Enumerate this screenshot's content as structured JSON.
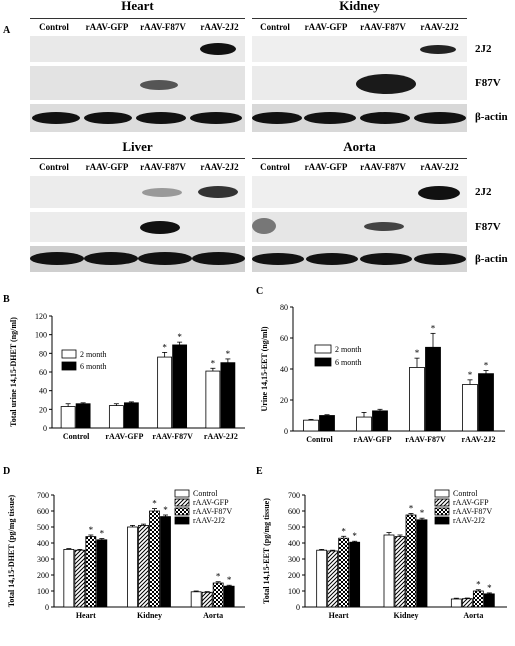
{
  "panel_labels": {
    "A": "A",
    "B": "B",
    "C": "C",
    "D": "D",
    "E": "E"
  },
  "western_blot": {
    "columns": [
      "Control",
      "rAAV-GFP",
      "rAAV-F87V",
      "rAAV-2J2"
    ],
    "band_labels": [
      "2J2",
      "F87V",
      "β-actin"
    ],
    "tissues": {
      "heart": {
        "title": "Heart"
      },
      "kidney": {
        "title": "Kidney"
      },
      "liver": {
        "title": "Liver"
      },
      "aorta": {
        "title": "Aorta"
      }
    }
  },
  "chart_data": [
    {
      "panel": "B",
      "type": "bar",
      "categories": [
        "Control",
        "rAAV-GFP",
        "rAAV-F87V",
        "rAAV-2J2"
      ],
      "series": [
        {
          "name": "2 month",
          "values": [
            23,
            24,
            76,
            61
          ],
          "errors": [
            3,
            2,
            5,
            3
          ],
          "color": "#ffffff"
        },
        {
          "name": "6 month",
          "values": [
            26,
            27,
            89,
            70
          ],
          "errors": [
            1,
            1,
            3,
            4
          ],
          "color": "#000000"
        }
      ],
      "significance": [
        [
          false,
          false,
          true,
          true
        ],
        [
          false,
          false,
          true,
          true
        ]
      ],
      "ylabel": "Total urine 14,15-DHET (ng/ml)",
      "ylim": [
        0,
        120
      ],
      "yticks": [
        0,
        20,
        40,
        60,
        80,
        100,
        120
      ],
      "legend": "upper-left"
    },
    {
      "panel": "C",
      "type": "bar",
      "categories": [
        "Control",
        "rAAV-GFP",
        "rAAV-F87V",
        "rAAV-2J2"
      ],
      "series": [
        {
          "name": "2 month",
          "values": [
            7,
            9,
            41,
            30
          ],
          "errors": [
            0.5,
            3,
            6,
            3
          ],
          "color": "#ffffff"
        },
        {
          "name": "6 month",
          "values": [
            10,
            13,
            54,
            37
          ],
          "errors": [
            0.5,
            1,
            9,
            2
          ],
          "color": "#000000"
        }
      ],
      "significance": [
        [
          false,
          false,
          true,
          true
        ],
        [
          false,
          false,
          true,
          true
        ]
      ],
      "ylabel": "Urine 14,15-EET (ng/ml)",
      "ylim": [
        0,
        80
      ],
      "yticks": [
        0,
        20,
        40,
        60,
        80
      ],
      "legend": "upper-left"
    },
    {
      "panel": "D",
      "type": "bar",
      "categories": [
        "Heart",
        "Kidney",
        "Aorta"
      ],
      "series": [
        {
          "name": "Control",
          "values": [
            360,
            500,
            95
          ],
          "errors": [
            5,
            10,
            5
          ],
          "pattern": "white"
        },
        {
          "name": "rAAV-GFP",
          "values": [
            355,
            510,
            92
          ],
          "errors": [
            5,
            8,
            4
          ],
          "pattern": "diag"
        },
        {
          "name": "rAAV-F87V",
          "values": [
            440,
            600,
            150
          ],
          "errors": [
            10,
            15,
            8
          ],
          "pattern": "check"
        },
        {
          "name": "rAAV-2J2",
          "values": [
            420,
            565,
            130
          ],
          "errors": [
            8,
            10,
            6
          ],
          "pattern": "black"
        }
      ],
      "significance": [
        [
          false,
          false,
          false
        ],
        [
          false,
          false,
          false
        ],
        [
          true,
          true,
          true
        ],
        [
          true,
          true,
          true
        ]
      ],
      "ylabel": "Total 14,15-DHET (pg/mg tissue)",
      "ylim": [
        0,
        700
      ],
      "yticks": [
        0,
        100,
        200,
        300,
        400,
        500,
        600,
        700
      ],
      "legend": "upper-right"
    },
    {
      "panel": "E",
      "type": "bar",
      "categories": [
        "Heart",
        "Kidney",
        "Aorta"
      ],
      "series": [
        {
          "name": "Control",
          "values": [
            355,
            450,
            50
          ],
          "errors": [
            5,
            15,
            5
          ],
          "pattern": "white"
        },
        {
          "name": "rAAV-GFP",
          "values": [
            350,
            440,
            52
          ],
          "errors": [
            5,
            10,
            4
          ],
          "pattern": "diag"
        },
        {
          "name": "rAAV-F87V",
          "values": [
            430,
            575,
            100
          ],
          "errors": [
            12,
            10,
            8
          ],
          "pattern": "check"
        },
        {
          "name": "rAAV-2J2",
          "values": [
            405,
            545,
            82
          ],
          "errors": [
            6,
            10,
            6
          ],
          "pattern": "black"
        }
      ],
      "significance": [
        [
          false,
          false,
          false
        ],
        [
          false,
          false,
          false
        ],
        [
          true,
          true,
          true
        ],
        [
          true,
          true,
          true
        ]
      ],
      "ylabel": "Total 14,15-EET (pg/mg tissue)",
      "ylim": [
        0,
        700
      ],
      "yticks": [
        0,
        100,
        200,
        300,
        400,
        500,
        600,
        700
      ],
      "legend": "upper-right"
    }
  ]
}
